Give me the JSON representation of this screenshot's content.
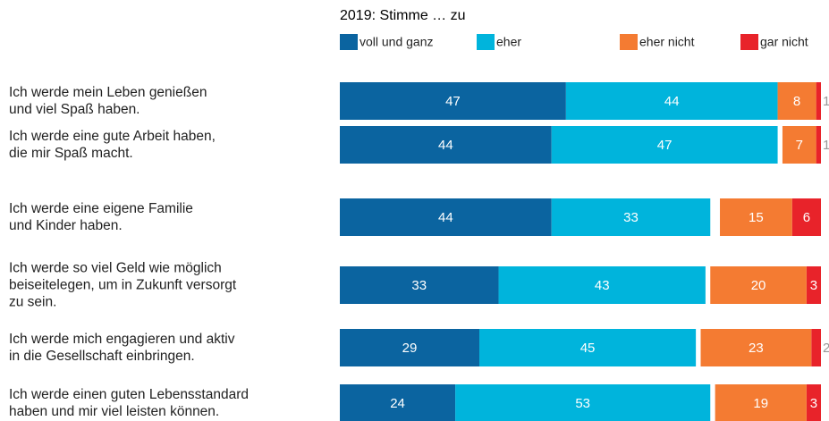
{
  "chart_data": {
    "type": "bar",
    "orientation": "horizontal",
    "stacked": true,
    "legend_title": "2019: Stimme … zu",
    "categories": [
      "Ich werde mein Leben genießen\nund viel Spaß haben.",
      "Ich werde eine gute Arbeit haben,\ndie mir Spaß macht.",
      "Ich werde eine eigene Familie\nund Kinder haben.",
      "Ich werde so viel Geld wie möglich\nbeiseitelegen, um in Zukunft versorgt\nzu sein.",
      "Ich werde mich engagieren und aktiv\nin die Gesellschaft einbringen.",
      "Ich werde einen guten Lebensstandard\nhaben und mir viel leisten können."
    ],
    "series": [
      {
        "name": "voll und ganz",
        "color": "#0b64a0",
        "values": [
          47,
          44,
          44,
          33,
          29,
          24
        ]
      },
      {
        "name": "eher",
        "color": "#00b4dc",
        "values": [
          44,
          47,
          33,
          43,
          45,
          53
        ]
      },
      {
        "name": "eher nicht",
        "color": "#f47b32",
        "values": [
          8,
          7,
          15,
          20,
          23,
          19
        ]
      },
      {
        "name": "gar nicht",
        "color": "#e8232a",
        "values": [
          1,
          1,
          6,
          3,
          2,
          3
        ]
      }
    ],
    "xlim": [
      0,
      100
    ]
  }
}
